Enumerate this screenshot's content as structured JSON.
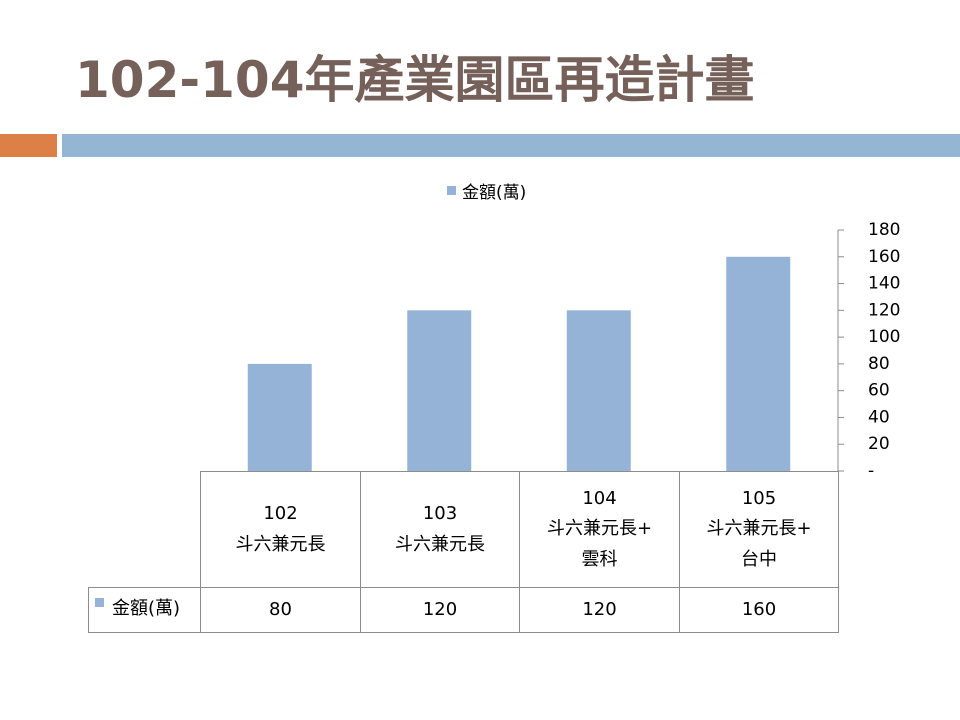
{
  "title": "102-104年產業園區再造計畫",
  "chart_data": {
    "type": "bar",
    "categories": [
      "102\n斗六兼元長",
      "103\n斗六兼元長",
      "104\n斗六兼元長+\n雲科",
      "105\n斗六兼元長+\n台中"
    ],
    "series": [
      {
        "name": "金額(萬)",
        "color": "#95b3d7",
        "values": [
          80,
          120,
          120,
          160
        ]
      }
    ],
    "ylim": [
      0,
      180
    ],
    "yticks": [
      {
        "value": 0,
        "label": "-"
      },
      20,
      40,
      60,
      80,
      100,
      120,
      140,
      160,
      180
    ],
    "grid": false
  }
}
